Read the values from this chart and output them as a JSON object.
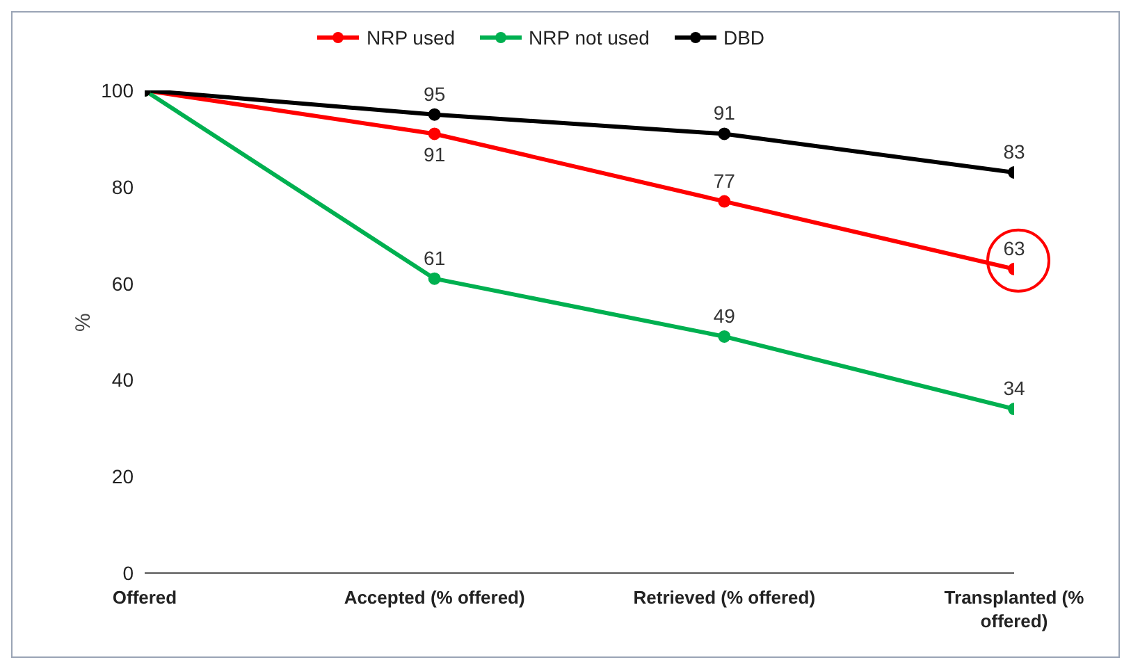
{
  "chart_data": {
    "type": "line",
    "ylabel": "%",
    "categories": [
      "Offered",
      "Accepted (% offered)",
      "Retrieved (% offered)",
      "Transplanted (% offered)"
    ],
    "series": [
      {
        "name": "NRP used",
        "color": "#ff0000",
        "values": [
          100,
          91,
          77,
          63
        ],
        "value_labels": [
          null,
          "91",
          "77",
          "63"
        ]
      },
      {
        "name": "NRP not used",
        "color": "#00b050",
        "values": [
          100,
          61,
          49,
          34
        ],
        "value_labels": [
          null,
          "61",
          "49",
          "34"
        ]
      },
      {
        "name": "DBD",
        "color": "#000000",
        "values": [
          100,
          95,
          91,
          83
        ],
        "value_labels": [
          null,
          "95",
          "91",
          "83"
        ]
      }
    ],
    "ylim": [
      0,
      100
    ],
    "yticks": [
      0,
      20,
      40,
      60,
      80,
      100
    ],
    "grid": false,
    "legend": "top",
    "marker": "circle",
    "line_style": "solid"
  }
}
